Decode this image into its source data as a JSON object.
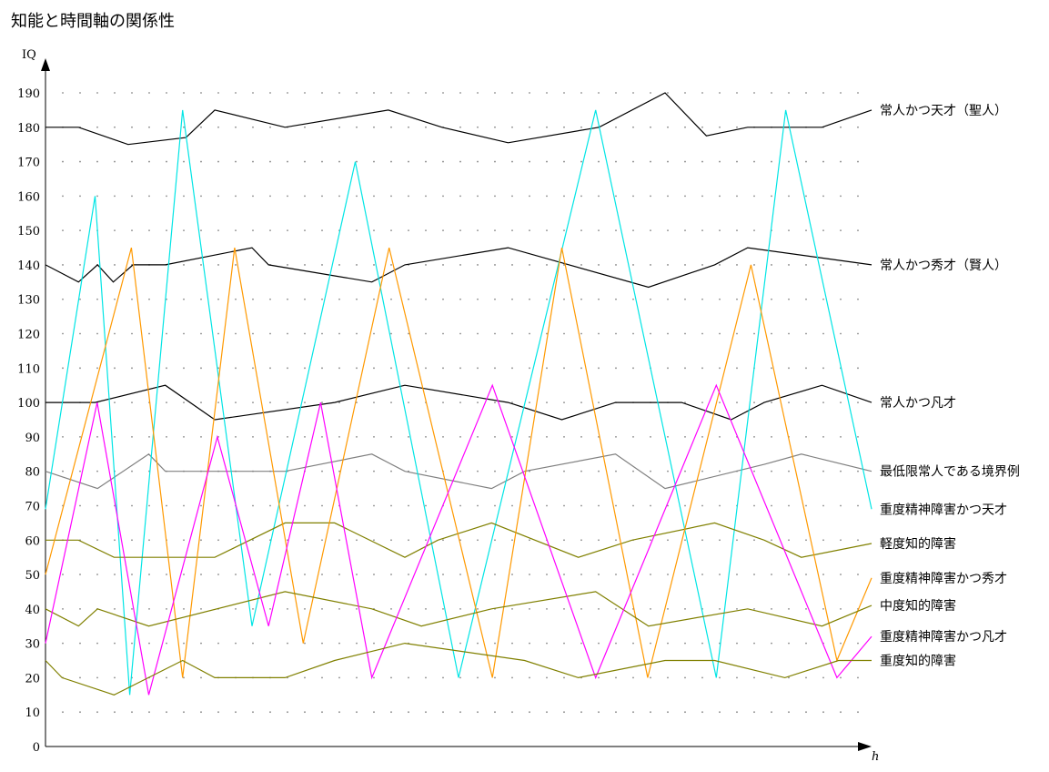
{
  "chart_data": {
    "type": "line",
    "title": "知能と時間軸の関係性",
    "xlabel": "h",
    "ylabel": "IQ",
    "ylim": [
      0,
      200
    ],
    "yticks": [
      0,
      10,
      20,
      30,
      40,
      50,
      60,
      70,
      80,
      90,
      100,
      110,
      120,
      130,
      140,
      150,
      160,
      170,
      180,
      190
    ],
    "xlim": [
      0,
      100
    ],
    "grid": true,
    "series": [
      {
        "name": "常人かつ天才（聖人）",
        "color": "#000000",
        "points": [
          [
            0,
            180
          ],
          [
            4,
            180
          ],
          [
            10,
            175
          ],
          [
            17,
            177
          ],
          [
            20.5,
            185
          ],
          [
            29,
            180
          ],
          [
            41.5,
            185
          ],
          [
            48,
            180
          ],
          [
            56,
            175.5
          ],
          [
            67,
            180
          ],
          [
            75,
            190
          ],
          [
            80,
            177.5
          ],
          [
            85,
            180
          ],
          [
            94,
            180
          ],
          [
            100,
            185
          ]
        ]
      },
      {
        "name": "常人かつ秀才（賢人）",
        "color": "#000000",
        "points": [
          [
            0,
            140
          ],
          [
            4,
            135
          ],
          [
            6.3,
            140
          ],
          [
            8.2,
            135
          ],
          [
            10.6,
            140
          ],
          [
            14.5,
            140
          ],
          [
            25,
            145
          ],
          [
            27,
            140
          ],
          [
            39.5,
            135
          ],
          [
            43.5,
            140
          ],
          [
            56,
            145
          ],
          [
            73,
            133.5
          ],
          [
            81,
            140
          ],
          [
            85,
            145
          ],
          [
            94,
            142
          ],
          [
            100,
            140
          ]
        ]
      },
      {
        "name": "常人かつ凡才",
        "color": "#000000",
        "points": [
          [
            0,
            100
          ],
          [
            6,
            100
          ],
          [
            14.5,
            105
          ],
          [
            20.5,
            95
          ],
          [
            35,
            100
          ],
          [
            43.5,
            105
          ],
          [
            56,
            100
          ],
          [
            62.5,
            95
          ],
          [
            69,
            100
          ],
          [
            77,
            100
          ],
          [
            83,
            95
          ],
          [
            87,
            100
          ],
          [
            94,
            105
          ],
          [
            100,
            100
          ]
        ]
      },
      {
        "name": "最低限常人である境界例",
        "color": "#808080",
        "points": [
          [
            0,
            80
          ],
          [
            6.3,
            75
          ],
          [
            12.5,
            85
          ],
          [
            14.5,
            80
          ],
          [
            29,
            80
          ],
          [
            39.5,
            85
          ],
          [
            43.5,
            80
          ],
          [
            54,
            75
          ],
          [
            58,
            80
          ],
          [
            69,
            85
          ],
          [
            75,
            75
          ],
          [
            87,
            82
          ],
          [
            91.5,
            85
          ],
          [
            100,
            80
          ]
        ]
      },
      {
        "name": "重度精神障害かつ天才",
        "color": "#00E5E5",
        "points": [
          [
            0,
            69
          ],
          [
            6,
            160
          ],
          [
            10.2,
            15
          ],
          [
            16.6,
            185
          ],
          [
            25,
            35
          ],
          [
            37.5,
            170
          ],
          [
            50,
            20
          ],
          [
            66.6,
            185
          ],
          [
            81.2,
            20
          ],
          [
            89.6,
            185
          ],
          [
            100,
            69
          ]
        ]
      },
      {
        "name": "軽度知的障害",
        "color": "#808000",
        "points": [
          [
            0,
            60
          ],
          [
            4,
            60
          ],
          [
            8.3,
            55
          ],
          [
            20.5,
            55
          ],
          [
            29,
            65
          ],
          [
            35,
            65
          ],
          [
            43.5,
            55
          ],
          [
            47.5,
            60
          ],
          [
            54,
            65
          ],
          [
            64.5,
            55
          ],
          [
            71,
            60
          ],
          [
            81,
            65
          ],
          [
            87,
            60
          ],
          [
            91.5,
            55
          ],
          [
            100,
            59
          ]
        ]
      },
      {
        "name": "重度精神障害かつ秀才",
        "color": "#FF9900",
        "points": [
          [
            0,
            50
          ],
          [
            10.4,
            145
          ],
          [
            16.6,
            20
          ],
          [
            22.9,
            145
          ],
          [
            31.2,
            30
          ],
          [
            41.6,
            145
          ],
          [
            54.1,
            20
          ],
          [
            62.5,
            145
          ],
          [
            72.9,
            20
          ],
          [
            85.4,
            140
          ],
          [
            95.8,
            25
          ],
          [
            100,
            49
          ]
        ]
      },
      {
        "name": "中度知的障害",
        "color": "#808000",
        "points": [
          [
            0,
            40
          ],
          [
            4,
            35
          ],
          [
            6.3,
            40
          ],
          [
            12.5,
            35
          ],
          [
            29,
            45
          ],
          [
            39.5,
            40
          ],
          [
            45.5,
            35
          ],
          [
            54,
            40
          ],
          [
            66.6,
            45
          ],
          [
            73,
            35
          ],
          [
            85,
            40
          ],
          [
            94,
            35
          ],
          [
            100,
            41
          ]
        ]
      },
      {
        "name": "重度精神障害かつ凡才",
        "color": "#FF00FF",
        "points": [
          [
            0,
            30
          ],
          [
            6.25,
            100
          ],
          [
            12.5,
            15
          ],
          [
            20.8,
            90
          ],
          [
            27,
            35
          ],
          [
            33.3,
            100
          ],
          [
            39.5,
            20
          ],
          [
            54.1,
            105
          ],
          [
            66.6,
            20
          ],
          [
            81.2,
            105
          ],
          [
            95.8,
            20
          ],
          [
            100,
            32
          ]
        ]
      },
      {
        "name": "重度知的障害",
        "color": "#808000",
        "points": [
          [
            0,
            25
          ],
          [
            2,
            20
          ],
          [
            8.3,
            15
          ],
          [
            16.6,
            25
          ],
          [
            20.5,
            20
          ],
          [
            29,
            20
          ],
          [
            35,
            25
          ],
          [
            43.5,
            30
          ],
          [
            58,
            25
          ],
          [
            64.5,
            20
          ],
          [
            75,
            25
          ],
          [
            81,
            25
          ],
          [
            89.5,
            20
          ],
          [
            96,
            25
          ],
          [
            100,
            25
          ]
        ]
      }
    ]
  }
}
